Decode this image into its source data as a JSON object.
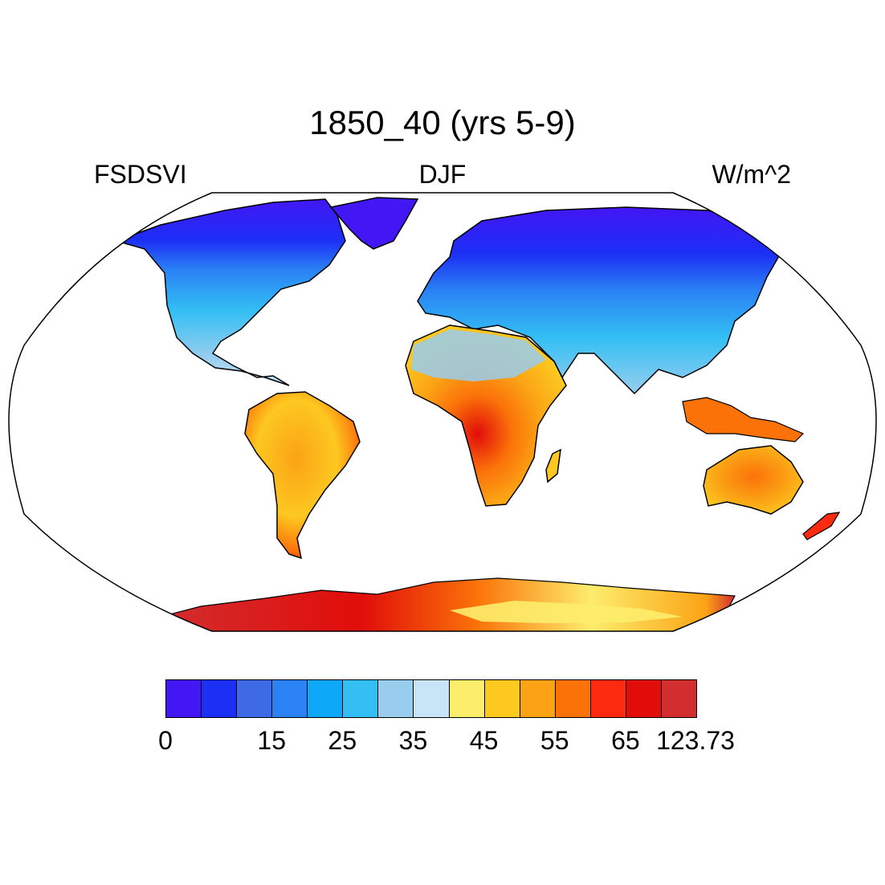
{
  "title": "1850_40 (yrs 5-9)",
  "left_string": "FSDSVI",
  "center_string": "DJF",
  "right_string": "W/m^2",
  "map": {
    "projection": "Robinson",
    "variable": "FSDSVI",
    "season": "DJF",
    "units": "W/m^2",
    "ocean_masked": true,
    "coastlines": true
  },
  "colorbar": {
    "colors": [
      "#4316f4",
      "#1c2ff5",
      "#3f6ae6",
      "#2a82f4",
      "#0ea8f8",
      "#33bff4",
      "#98cdee",
      "#c8e5f7",
      "#fded6c",
      "#fdc820",
      "#fba315",
      "#fb7209",
      "#fc2a0e",
      "#e10d0a",
      "#d22d2f"
    ],
    "tick_labels": [
      {
        "index": 0,
        "text": "0"
      },
      {
        "index": 3,
        "text": "15"
      },
      {
        "index": 5,
        "text": "25"
      },
      {
        "index": 7,
        "text": "35"
      },
      {
        "index": 9,
        "text": "45"
      },
      {
        "index": 11,
        "text": "55"
      },
      {
        "index": 13,
        "text": "65"
      },
      {
        "index": 15,
        "text": "123.73"
      }
    ]
  }
}
